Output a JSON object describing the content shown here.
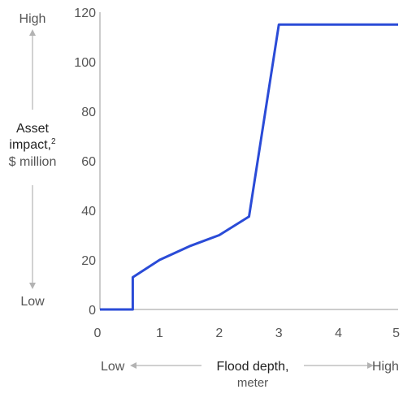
{
  "chart_data": {
    "type": "line",
    "xlabel": "Flood depth,",
    "xlabel_unit": "meter",
    "ylabel": "Asset impact,",
    "ylabel_footnote": "2",
    "ylabel_unit": "$ million",
    "x_axis_low_label": "Low",
    "x_axis_high_label": "High",
    "y_axis_low_label": "Low",
    "y_axis_high_label": "High",
    "xlim": [
      0,
      5
    ],
    "ylim": [
      0,
      120
    ],
    "x_ticks": [
      0,
      1,
      2,
      3,
      4,
      5
    ],
    "y_ticks": [
      0,
      20,
      40,
      60,
      80,
      100,
      120
    ],
    "grid": false,
    "series": [
      {
        "color": "#2a4bd7",
        "points": [
          {
            "x": 0,
            "y": 0
          },
          {
            "x": 0.55,
            "y": 0
          },
          {
            "x": 0.55,
            "y": 13
          },
          {
            "x": 1.0,
            "y": 20
          },
          {
            "x": 1.5,
            "y": 25.5
          },
          {
            "x": 2.0,
            "y": 30
          },
          {
            "x": 2.5,
            "y": 37.5
          },
          {
            "x": 3.0,
            "y": 115
          },
          {
            "x": 5.0,
            "y": 115
          }
        ]
      }
    ]
  },
  "colors": {
    "line": "#2a4bd7",
    "axis": "#999999",
    "arrow": "#b3b3b3",
    "text": "#555555"
  }
}
